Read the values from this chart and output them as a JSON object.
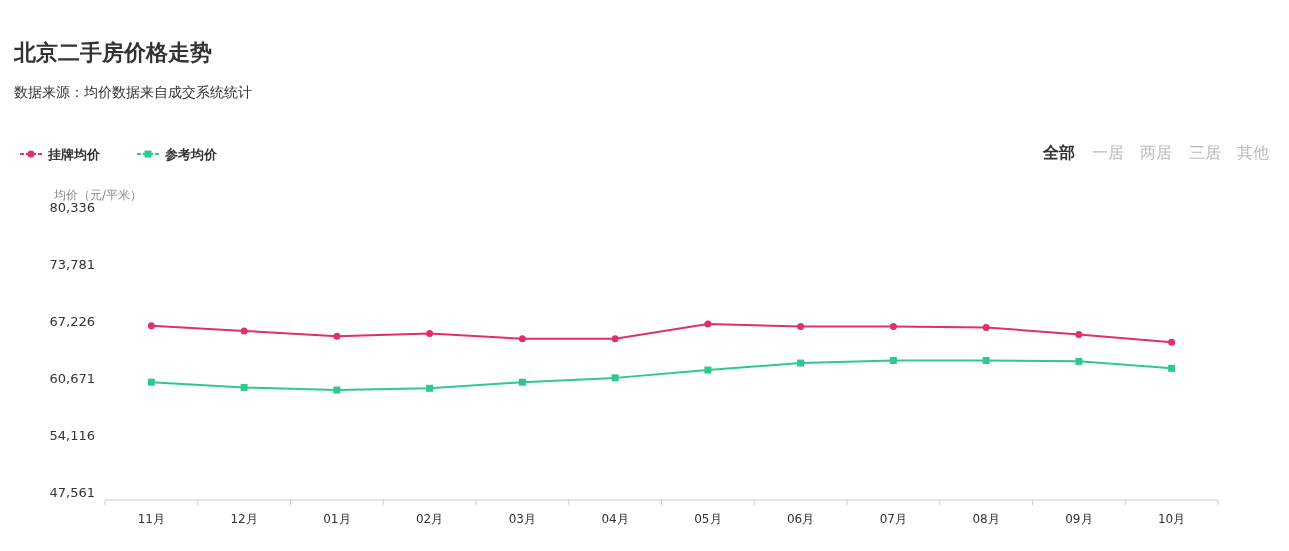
{
  "chart_data": {
    "type": "line",
    "title": "北京二手房价格走势",
    "subtitle": "数据来源：均价数据来自成交系统统计",
    "ylabel": "均价（元/平米）",
    "categories": [
      "11月",
      "12月",
      "01月",
      "02月",
      "03月",
      "04月",
      "05月",
      "06月",
      "07月",
      "08月",
      "09月",
      "10月"
    ],
    "series": [
      {
        "name": "挂牌均价",
        "color": "#e0306a",
        "marker": "circle",
        "values": [
          66800,
          66200,
          65600,
          65900,
          65300,
          65300,
          67000,
          66700,
          66700,
          66600,
          65800,
          64900
        ]
      },
      {
        "name": "参考均价",
        "color": "#2ec98f",
        "marker": "square",
        "values": [
          60300,
          59700,
          59400,
          59600,
          60300,
          60800,
          61700,
          62500,
          62800,
          62800,
          62700,
          61900
        ]
      }
    ],
    "ylim": [
      47561,
      80336
    ],
    "yticks": [
      {
        "value": 47561,
        "label": "47,561"
      },
      {
        "value": 54116,
        "label": "54,116"
      },
      {
        "value": 60671,
        "label": "60,671"
      },
      {
        "value": 67226,
        "label": "67,226"
      },
      {
        "value": 73781,
        "label": "73,781"
      },
      {
        "value": 80336,
        "label": "80,336"
      }
    ],
    "grid": false,
    "legend": "top left",
    "line_style": "solid",
    "annotations": [
      "全部",
      "一居",
      "两居",
      "三居",
      "其他"
    ]
  }
}
